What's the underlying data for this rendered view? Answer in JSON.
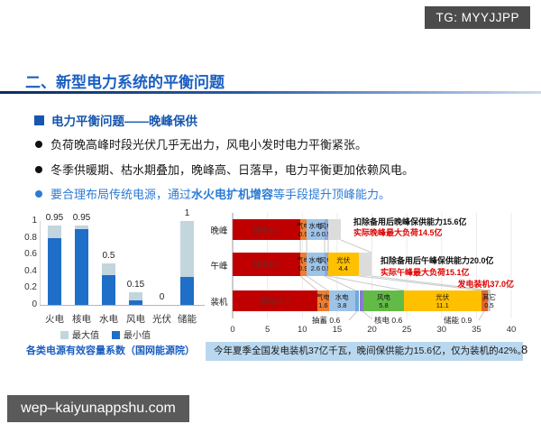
{
  "overlay": {
    "tg_badge": "TG: MYYJJPP",
    "watermark": "wep–kaiyunappshu.com"
  },
  "slide": {
    "title": "二、新型电力系统的平衡问题",
    "subtitle": "电力平衡问题——晚峰保供",
    "bullet1": "负荷晚高峰时段光伏几乎无出力，风电小发时电力平衡紧张。",
    "bullet2": "冬季供暖期、枯水期叠加，晚峰高、日落早，电力平衡更加依赖风电。",
    "bullet3_pre": "要合理布局传统电源，通过",
    "bullet3_bold": "水火电扩机增容",
    "bullet3_post": "等手段提升顶峰能力。",
    "footnote": "今年夏季全国发电装机37亿千瓦，晚间保供能力15.6亿，仅为装机的42%。",
    "page_number": "8"
  },
  "chart_data": [
    {
      "type": "bar",
      "title": "各类电源有效容量系数（国网能源院）",
      "categories": [
        "火电",
        "核电",
        "水电",
        "风电",
        "光伏",
        "储能"
      ],
      "series": [
        {
          "name": "最小值",
          "color": "#1f6ec7",
          "values": [
            0.8,
            0.9,
            0.35,
            0.05,
            0,
            0.33
          ]
        },
        {
          "name": "最大值",
          "color": "#c3d5dd",
          "values": [
            0.95,
            0.95,
            0.5,
            0.15,
            0,
            1
          ]
        }
      ],
      "value_labels": [
        "0.95",
        "0.95",
        "0.5",
        "0.15",
        "0",
        "1"
      ],
      "y_ticks": [
        "1",
        "0.8",
        "0.6",
        "0.4",
        "0.2",
        "0"
      ],
      "ylim": [
        0,
        1
      ],
      "grid": false,
      "legend": [
        "最大值",
        "最小值"
      ],
      "legend_position": "bottom"
    },
    {
      "type": "stacked-horizontal-bar",
      "xlim": [
        0,
        40
      ],
      "x_ticks": [
        "0",
        "5",
        "10",
        "15",
        "20",
        "25",
        "30",
        "35",
        "40"
      ],
      "rows": [
        {
          "label": "晚峰",
          "total": 15.6,
          "segments": [
            {
              "name": "煤电",
              "value": 9.7,
              "color": "#c00000",
              "style": "coal"
            },
            {
              "name": "气电",
              "value": 0.9,
              "color": "#ed7d31",
              "style": "two"
            },
            {
              "name": "水电",
              "value": 2.6,
              "color": "#9dc3e6",
              "style": "two"
            },
            {
              "name": "风电",
              "value": 0.5,
              "color": "#8faadc",
              "style": "two"
            },
            {
              "name": "",
              "value": 1.9,
              "color": "#dcdcdc",
              "style": "none"
            }
          ],
          "annotation_black": "扣除备用后晚峰保供能力15.6亿",
          "annotation_red": "实际晚峰最大负荷14.5亿"
        },
        {
          "label": "午峰",
          "total": 20.0,
          "segments": [
            {
              "name": "煤电",
              "value": 9.7,
              "color": "#c00000",
              "style": "coal"
            },
            {
              "name": "气电",
              "value": 0.9,
              "color": "#ed7d31",
              "style": "two"
            },
            {
              "name": "水电",
              "value": 2.6,
              "color": "#9dc3e6",
              "style": "two"
            },
            {
              "name": "风电",
              "value": 0.5,
              "color": "#8faadc",
              "style": "two"
            },
            {
              "name": "光伏",
              "value": 4.4,
              "color": "#ffc000",
              "style": "two"
            },
            {
              "name": "",
              "value": 1.9,
              "color": "#dcdcdc",
              "style": "none"
            }
          ],
          "annotation_black": "扣除备用后午峰保供能力20.0亿",
          "annotation_red": "实际午峰最大负荷15.1亿"
        },
        {
          "label": "装机",
          "total": 37.0,
          "segments": [
            {
              "name": "煤电",
              "value": 12.2,
              "color": "#c00000",
              "style": "coal"
            },
            {
              "name": "气电",
              "value": 1.6,
              "color": "#ed7d31",
              "style": "two"
            },
            {
              "name": "水电",
              "value": 3.8,
              "color": "#9dc3e6",
              "style": "two"
            },
            {
              "name": "抽蓄",
              "value": 0.6,
              "color": "#6fa8dc",
              "style": "none"
            },
            {
              "name": "核电",
              "value": 0.6,
              "color": "#8a7bc8",
              "style": "none"
            },
            {
              "name": "风电",
              "value": 5.8,
              "color": "#62bb46",
              "style": "two"
            },
            {
              "name": "光伏",
              "value": 11.1,
              "color": "#ffc000",
              "style": "two"
            },
            {
              "name": "储能",
              "value": 0.9,
              "color": "#e2662c",
              "style": "none"
            },
            {
              "name": "其它",
              "value": 0.5,
              "color": "#c9c9c9",
              "style": "two"
            }
          ]
        }
      ],
      "callouts": [
        {
          "text": "抽蓄 0.6"
        },
        {
          "text": "核电 0.6"
        },
        {
          "text": "储能 0.9"
        }
      ],
      "total_label": "发电装机37.0亿"
    }
  ]
}
